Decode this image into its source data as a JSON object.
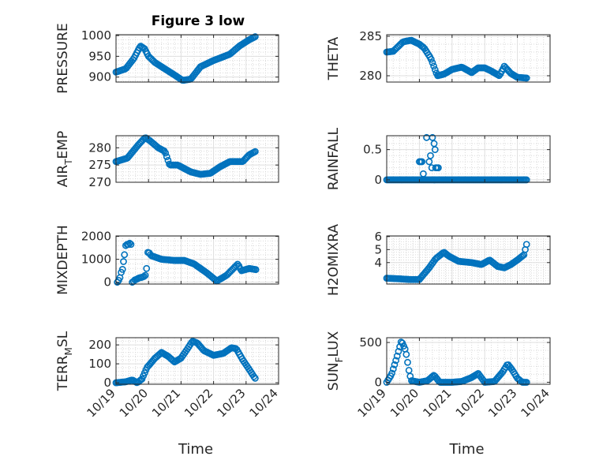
{
  "chart_data": {
    "title": "Figure 3 low",
    "type": "scatter",
    "marker": "open-circle",
    "marker_color": "#0072BD",
    "grid": "major-and-minor",
    "x_axis": {
      "label": "Time",
      "ticks": [
        0,
        1,
        2,
        3,
        4,
        5
      ],
      "tick_labels": [
        "10/19",
        "10/20",
        "10/21",
        "10/22",
        "10/23",
        "10/24"
      ],
      "range": [
        0,
        5
      ]
    },
    "panels": [
      {
        "id": "pressure",
        "ylabel": "PRESSURE",
        "ylim": [
          888,
          1002
        ],
        "yticks": [
          900,
          950,
          1000
        ],
        "ytick_labels": [
          "900",
          "950",
          "1000"
        ],
        "knots": [
          [
            0,
            912
          ],
          [
            0.3,
            920
          ],
          [
            0.55,
            945
          ],
          [
            0.75,
            975
          ],
          [
            0.88,
            968
          ],
          [
            1.0,
            950
          ],
          [
            1.2,
            935
          ],
          [
            1.5,
            920
          ],
          [
            1.8,
            905
          ],
          [
            2.05,
            892
          ],
          [
            2.3,
            895
          ],
          [
            2.6,
            925
          ],
          [
            3.0,
            940
          ],
          [
            3.5,
            955
          ],
          [
            3.8,
            975
          ],
          [
            4.1,
            990
          ],
          [
            4.3,
            998
          ]
        ],
        "points": []
      },
      {
        "id": "theta",
        "ylabel": "THETA",
        "ylim": [
          279.2,
          285.2
        ],
        "yticks": [
          280,
          285
        ],
        "ytick_labels": [
          "280",
          "285"
        ],
        "knots": [
          [
            0,
            283
          ],
          [
            0.2,
            283.1
          ],
          [
            0.5,
            284.3
          ],
          [
            0.75,
            284.5
          ],
          [
            1.0,
            284
          ],
          [
            1.15,
            283.5
          ],
          [
            1.35,
            282.2
          ],
          [
            1.55,
            280
          ],
          [
            1.75,
            280.2
          ],
          [
            2.0,
            280.8
          ],
          [
            2.3,
            281.1
          ],
          [
            2.6,
            280.4
          ],
          [
            2.8,
            281
          ],
          [
            3.0,
            281
          ],
          [
            3.2,
            280.6
          ],
          [
            3.45,
            280
          ],
          [
            3.6,
            281.2
          ],
          [
            3.8,
            280.3
          ],
          [
            4.0,
            279.8
          ],
          [
            4.3,
            279.7
          ]
        ],
        "points": []
      },
      {
        "id": "air_temp",
        "ylabel": "AIR_TEMP",
        "ylabel_main": "AIR",
        "ylabel_sub": "T",
        "ylabel_rest": "EMP",
        "ylim": [
          270,
          283.5
        ],
        "yticks": [
          270,
          275,
          280
        ],
        "ytick_labels": [
          "270",
          "275",
          "280"
        ],
        "knots": [
          [
            0,
            276
          ],
          [
            0.35,
            277
          ],
          [
            0.7,
            281
          ],
          [
            0.9,
            283
          ],
          [
            1.05,
            282
          ],
          [
            1.3,
            280
          ],
          [
            1.5,
            279
          ],
          [
            1.65,
            275
          ],
          [
            1.9,
            275
          ],
          [
            2.3,
            273
          ],
          [
            2.6,
            272.3
          ],
          [
            2.9,
            272.6
          ],
          [
            3.2,
            274.5
          ],
          [
            3.5,
            276
          ],
          [
            3.9,
            276
          ],
          [
            4.1,
            278
          ],
          [
            4.3,
            279
          ]
        ],
        "points": []
      },
      {
        "id": "rainfall",
        "ylabel": "RAINFALL",
        "ylim": [
          -0.04,
          0.73
        ],
        "yticks": [
          0,
          0.5
        ],
        "ytick_labels": [
          "0",
          "0.5"
        ],
        "baseline": 0,
        "points": [
          [
            1.0,
            0.3
          ],
          [
            1.04,
            0.3
          ],
          [
            1.08,
            0.3
          ],
          [
            1.12,
            0.1
          ],
          [
            1.22,
            0.7
          ],
          [
            1.3,
            0.3
          ],
          [
            1.34,
            0.4
          ],
          [
            1.4,
            0.7
          ],
          [
            1.45,
            0.6
          ],
          [
            1.48,
            0.5
          ],
          [
            1.38,
            0.2
          ],
          [
            1.5,
            0.2
          ],
          [
            1.54,
            0.2
          ],
          [
            1.58,
            0.2
          ],
          [
            1.46,
            0.0
          ]
        ]
      },
      {
        "id": "mixdepth",
        "ylabel": "MIXDEPTH",
        "ylim": [
          -80,
          2020
        ],
        "yticks": [
          0,
          1000,
          2000
        ],
        "ytick_labels": [
          "0",
          "1000",
          "2000"
        ],
        "points": [
          [
            0.04,
            0
          ],
          [
            0.08,
            80
          ],
          [
            0.12,
            200
          ],
          [
            0.16,
            430
          ],
          [
            0.2,
            560
          ],
          [
            0.23,
            900
          ],
          [
            0.26,
            1200
          ],
          [
            0.3,
            1600
          ],
          [
            0.34,
            1650
          ],
          [
            0.38,
            1650
          ],
          [
            0.42,
            1700
          ],
          [
            0.46,
            1650
          ],
          [
            0.5,
            0
          ],
          [
            0.54,
            40
          ],
          [
            0.58,
            100
          ],
          [
            0.62,
            120
          ],
          [
            0.66,
            150
          ],
          [
            0.7,
            180
          ],
          [
            0.74,
            200
          ],
          [
            0.78,
            210
          ],
          [
            0.82,
            230
          ],
          [
            0.86,
            250
          ],
          [
            0.9,
            300
          ],
          [
            0.94,
            600
          ],
          [
            0.98,
            1300
          ],
          [
            1.02,
            1280
          ],
          [
            1.06,
            1200
          ]
        ],
        "knots": [
          [
            1.1,
            1150
          ],
          [
            1.4,
            1000
          ],
          [
            1.8,
            950
          ],
          [
            2.1,
            950
          ],
          [
            2.4,
            800
          ],
          [
            2.8,
            400
          ],
          [
            3.1,
            50
          ],
          [
            3.4,
            300
          ],
          [
            3.75,
            800
          ],
          [
            3.85,
            500
          ],
          [
            4.1,
            600
          ],
          [
            4.3,
            550
          ]
        ]
      },
      {
        "id": "h2omixra",
        "ylabel": "H2OMIXRA",
        "ylim": [
          2.35,
          6.05
        ],
        "yticks": [
          4,
          5,
          6
        ],
        "ytick_labels": [
          "4",
          "5",
          "6"
        ],
        "knots": [
          [
            0,
            2.8
          ],
          [
            0.4,
            2.75
          ],
          [
            0.7,
            2.7
          ],
          [
            1.0,
            2.7
          ],
          [
            1.3,
            3.6
          ],
          [
            1.5,
            4.3
          ],
          [
            1.75,
            4.8
          ],
          [
            1.9,
            4.5
          ],
          [
            2.2,
            4.1
          ],
          [
            2.6,
            4.0
          ],
          [
            2.9,
            3.85
          ],
          [
            3.15,
            4.2
          ],
          [
            3.4,
            3.7
          ],
          [
            3.6,
            3.6
          ],
          [
            3.8,
            3.85
          ],
          [
            4.0,
            4.2
          ],
          [
            4.2,
            4.6
          ],
          [
            4.3,
            5.6
          ]
        ],
        "points": []
      },
      {
        "id": "terr_msl",
        "ylabel": "TERR_MSL",
        "ylabel_main": "TERR",
        "ylabel_sub": "M",
        "ylabel_rest": "SL",
        "ylim": [
          -8,
          238
        ],
        "yticks": [
          0,
          100,
          200
        ],
        "ytick_labels": [
          "0",
          "100",
          "200"
        ],
        "knots": [
          [
            0,
            0
          ],
          [
            0.3,
            5
          ],
          [
            0.5,
            15
          ],
          [
            0.65,
            0
          ],
          [
            0.8,
            20
          ],
          [
            0.95,
            80
          ],
          [
            1.05,
            100
          ],
          [
            1.2,
            130
          ],
          [
            1.4,
            160
          ],
          [
            1.6,
            140
          ],
          [
            1.8,
            110
          ],
          [
            2.0,
            130
          ],
          [
            2.2,
            180
          ],
          [
            2.35,
            220
          ],
          [
            2.5,
            210
          ],
          [
            2.7,
            170
          ],
          [
            3.0,
            145
          ],
          [
            3.3,
            155
          ],
          [
            3.55,
            185
          ],
          [
            3.7,
            180
          ],
          [
            3.9,
            120
          ],
          [
            4.1,
            70
          ],
          [
            4.25,
            30
          ],
          [
            4.35,
            10
          ]
        ],
        "points": []
      },
      {
        "id": "sun_flux",
        "ylabel": "SUN_FLUX",
        "ylabel_main": "SUN",
        "ylabel_sub": "F",
        "ylabel_rest": "LUX",
        "ylim": [
          -25,
          560
        ],
        "yticks": [
          0,
          500
        ],
        "ytick_labels": [
          "0",
          "500"
        ],
        "knots": [
          [
            0,
            0
          ],
          [
            0.15,
            100
          ],
          [
            0.3,
            300
          ],
          [
            0.45,
            520
          ],
          [
            0.58,
            400
          ],
          [
            0.68,
            150
          ],
          [
            0.75,
            20
          ],
          [
            1.0,
            0
          ],
          [
            1.25,
            20
          ],
          [
            1.45,
            90
          ],
          [
            1.62,
            0
          ],
          [
            2.0,
            0
          ],
          [
            2.3,
            10
          ],
          [
            2.6,
            60
          ],
          [
            2.8,
            110
          ],
          [
            3.0,
            0
          ],
          [
            3.3,
            10
          ],
          [
            3.55,
            130
          ],
          [
            3.7,
            230
          ],
          [
            3.85,
            150
          ],
          [
            4.0,
            50
          ],
          [
            4.15,
            0
          ],
          [
            4.35,
            0
          ]
        ],
        "points": []
      }
    ]
  }
}
